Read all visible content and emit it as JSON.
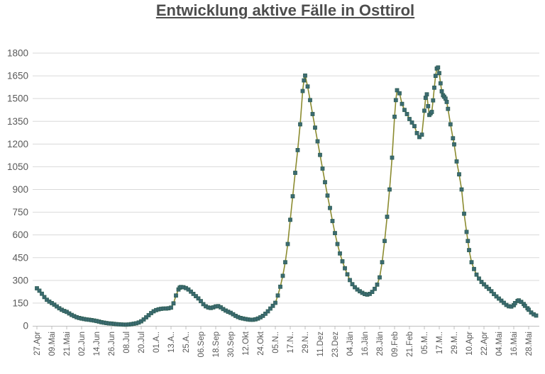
{
  "title": "Entwicklung aktive Fälle in Osttirol",
  "chart_data": {
    "type": "line",
    "title": "Entwicklung aktive Fälle in Osttirol",
    "legend": "none",
    "grid": "horizontal",
    "colors": {
      "line": "#8b8b2f",
      "marker_fill": "#3c6b72",
      "marker_edge": "#2f5f55",
      "gridline": "#d9d9d9",
      "axis_line": "#bfbfbf",
      "axis_text": "#595959",
      "title_text": "#4d4d4d"
    },
    "y_axis": {
      "min": 0,
      "max": 1800,
      "step": 150,
      "ticks": [
        0,
        150,
        300,
        450,
        600,
        750,
        900,
        1050,
        1200,
        1350,
        1500,
        1650,
        1800
      ]
    },
    "x_axis": {
      "tick_interval_days": 12,
      "tick_labels": [
        "27.Apr",
        "09.Mai",
        "21.Mai",
        "02.Jun",
        "14.Jun",
        "26.Jun",
        "08.Jul",
        "20.Jul",
        "01.A..",
        "13.A..",
        "25.A..",
        "06.Sep",
        "18.Sep",
        "30.Sep",
        "12.Okt",
        "24.Okt",
        "05.N..",
        "17.N..",
        "29.N..",
        "11.Dez",
        "23.Dez",
        "04.Jän",
        "16.Jän",
        "28.Jän",
        "09.Feb",
        "21.Feb",
        "05.M..",
        "17.M..",
        "29.M..",
        "10.Apr",
        "22.Apr",
        "04.Mai",
        "16.Mai",
        "28.Mai"
      ]
    },
    "series": [
      {
        "name": "aktive Fälle",
        "marker": "square",
        "points_format": "[day_offset_from_27_Apr, value]",
        "points": [
          [
            0,
            248
          ],
          [
            2,
            232
          ],
          [
            4,
            212
          ],
          [
            6,
            190
          ],
          [
            8,
            172
          ],
          [
            10,
            160
          ],
          [
            12,
            150
          ],
          [
            14,
            140
          ],
          [
            16,
            128
          ],
          [
            18,
            116
          ],
          [
            20,
            106
          ],
          [
            22,
            98
          ],
          [
            24,
            92
          ],
          [
            26,
            82
          ],
          [
            28,
            72
          ],
          [
            30,
            64
          ],
          [
            32,
            57
          ],
          [
            34,
            52
          ],
          [
            36,
            48
          ],
          [
            38,
            45
          ],
          [
            40,
            42
          ],
          [
            42,
            40
          ],
          [
            44,
            38
          ],
          [
            46,
            35
          ],
          [
            48,
            32
          ],
          [
            50,
            28
          ],
          [
            52,
            24
          ],
          [
            54,
            21
          ],
          [
            56,
            18
          ],
          [
            58,
            16
          ],
          [
            60,
            15
          ],
          [
            62,
            13
          ],
          [
            64,
            11
          ],
          [
            66,
            10
          ],
          [
            68,
            9
          ],
          [
            70,
            8
          ],
          [
            72,
            8
          ],
          [
            74,
            9
          ],
          [
            76,
            11
          ],
          [
            78,
            14
          ],
          [
            80,
            17
          ],
          [
            82,
            22
          ],
          [
            84,
            30
          ],
          [
            86,
            42
          ],
          [
            88,
            56
          ],
          [
            90,
            70
          ],
          [
            92,
            84
          ],
          [
            94,
            96
          ],
          [
            96,
            104
          ],
          [
            98,
            109
          ],
          [
            100,
            112
          ],
          [
            102,
            114
          ],
          [
            104,
            114
          ],
          [
            106,
            116
          ],
          [
            108,
            120
          ],
          [
            110,
            148
          ],
          [
            112,
            200
          ],
          [
            114,
            240
          ],
          [
            115,
            252
          ],
          [
            116,
            256
          ],
          [
            118,
            255
          ],
          [
            120,
            249
          ],
          [
            122,
            240
          ],
          [
            124,
            226
          ],
          [
            126,
            211
          ],
          [
            128,
            196
          ],
          [
            130,
            181
          ],
          [
            132,
            163
          ],
          [
            134,
            143
          ],
          [
            136,
            129
          ],
          [
            138,
            121
          ],
          [
            140,
            118
          ],
          [
            142,
            122
          ],
          [
            144,
            128
          ],
          [
            146,
            130
          ],
          [
            148,
            122
          ],
          [
            150,
            111
          ],
          [
            152,
            101
          ],
          [
            154,
            93
          ],
          [
            156,
            86
          ],
          [
            158,
            76
          ],
          [
            160,
            66
          ],
          [
            162,
            58
          ],
          [
            164,
            52
          ],
          [
            166,
            48
          ],
          [
            168,
            45
          ],
          [
            170,
            42
          ],
          [
            172,
            40
          ],
          [
            174,
            40
          ],
          [
            176,
            43
          ],
          [
            178,
            48
          ],
          [
            180,
            56
          ],
          [
            182,
            66
          ],
          [
            184,
            80
          ],
          [
            186,
            96
          ],
          [
            188,
            114
          ],
          [
            190,
            132
          ],
          [
            192,
            152
          ],
          [
            194,
            200
          ],
          [
            196,
            258
          ],
          [
            198,
            330
          ],
          [
            200,
            420
          ],
          [
            202,
            540
          ],
          [
            204,
            700
          ],
          [
            206,
            855
          ],
          [
            208,
            1010
          ],
          [
            210,
            1160
          ],
          [
            212,
            1330
          ],
          [
            214,
            1550
          ],
          [
            215,
            1620
          ],
          [
            216,
            1652
          ],
          [
            218,
            1580
          ],
          [
            220,
            1490
          ],
          [
            222,
            1398
          ],
          [
            224,
            1308
          ],
          [
            226,
            1218
          ],
          [
            228,
            1128
          ],
          [
            230,
            1038
          ],
          [
            232,
            948
          ],
          [
            234,
            860
          ],
          [
            236,
            778
          ],
          [
            238,
            692
          ],
          [
            240,
            612
          ],
          [
            242,
            540
          ],
          [
            244,
            478
          ],
          [
            246,
            426
          ],
          [
            248,
            380
          ],
          [
            250,
            340
          ],
          [
            252,
            302
          ],
          [
            254,
            275
          ],
          [
            256,
            255
          ],
          [
            258,
            240
          ],
          [
            260,
            228
          ],
          [
            262,
            218
          ],
          [
            264,
            210
          ],
          [
            266,
            206
          ],
          [
            268,
            211
          ],
          [
            270,
            224
          ],
          [
            272,
            244
          ],
          [
            274,
            272
          ],
          [
            276,
            320
          ],
          [
            278,
            420
          ],
          [
            280,
            560
          ],
          [
            282,
            720
          ],
          [
            284,
            900
          ],
          [
            286,
            1110
          ],
          [
            288,
            1380
          ],
          [
            289,
            1490
          ],
          [
            290,
            1555
          ],
          [
            292,
            1535
          ],
          [
            294,
            1465
          ],
          [
            296,
            1425
          ],
          [
            298,
            1398
          ],
          [
            300,
            1365
          ],
          [
            302,
            1342
          ],
          [
            304,
            1318
          ],
          [
            306,
            1272
          ],
          [
            308,
            1246
          ],
          [
            310,
            1262
          ],
          [
            312,
            1420
          ],
          [
            313,
            1505
          ],
          [
            314,
            1528
          ],
          [
            315,
            1450
          ],
          [
            316,
            1392
          ],
          [
            317,
            1402
          ],
          [
            318,
            1412
          ],
          [
            319,
            1488
          ],
          [
            320,
            1572
          ],
          [
            321,
            1650
          ],
          [
            322,
            1698
          ],
          [
            323,
            1705
          ],
          [
            324,
            1668
          ],
          [
            325,
            1601
          ],
          [
            326,
            1548
          ],
          [
            327,
            1522
          ],
          [
            328,
            1512
          ],
          [
            329,
            1500
          ],
          [
            330,
            1478
          ],
          [
            331,
            1432
          ],
          [
            333,
            1330
          ],
          [
            335,
            1238
          ],
          [
            336,
            1198
          ],
          [
            338,
            1085
          ],
          [
            340,
            1000
          ],
          [
            342,
            900
          ],
          [
            344,
            740
          ],
          [
            346,
            620
          ],
          [
            347,
            560
          ],
          [
            348,
            500
          ],
          [
            350,
            420
          ],
          [
            352,
            375
          ],
          [
            354,
            338
          ],
          [
            356,
            312
          ],
          [
            358,
            290
          ],
          [
            360,
            274
          ],
          [
            362,
            258
          ],
          [
            364,
            244
          ],
          [
            366,
            228
          ],
          [
            368,
            210
          ],
          [
            370,
            194
          ],
          [
            372,
            180
          ],
          [
            374,
            166
          ],
          [
            376,
            152
          ],
          [
            378,
            138
          ],
          [
            380,
            129
          ],
          [
            382,
            127
          ],
          [
            384,
            136
          ],
          [
            385,
            150
          ],
          [
            387,
            164
          ],
          [
            388,
            168
          ],
          [
            390,
            158
          ],
          [
            392,
            144
          ],
          [
            393,
            132
          ],
          [
            395,
            116
          ],
          [
            396,
            106
          ],
          [
            398,
            88
          ],
          [
            400,
            76
          ],
          [
            402,
            68
          ]
        ]
      }
    ]
  }
}
